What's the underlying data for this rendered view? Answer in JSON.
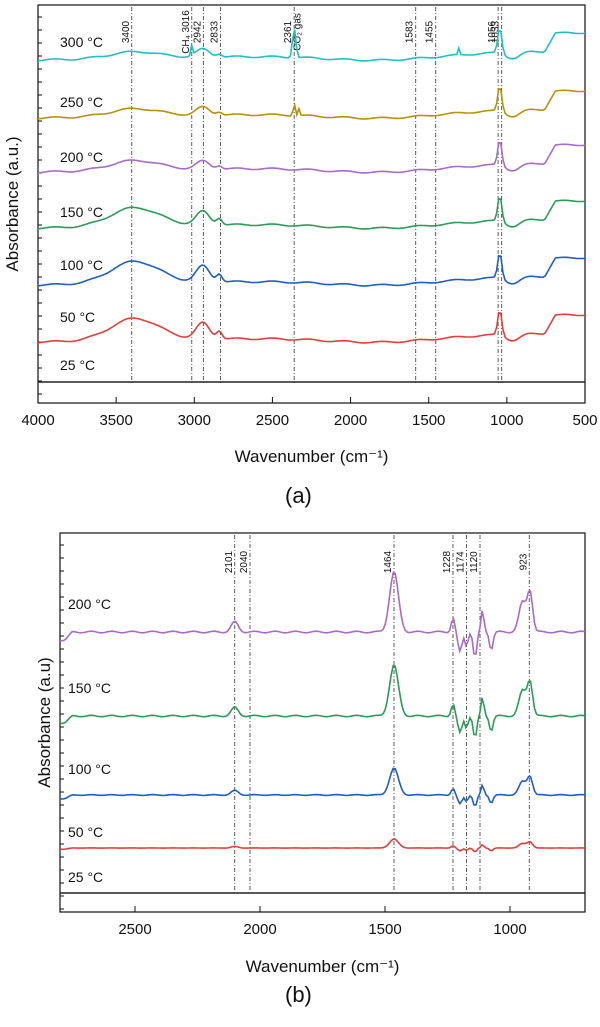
{
  "figure": {
    "panel_labels": [
      "(a)",
      "(b)"
    ]
  },
  "colors": {
    "300 °C": "#22c1c1",
    "250 °C": "#b8900e",
    "200 °C": "#a66cc8",
    "150 °C": "#2e9a5a",
    "100 °C": "#1f5fbf",
    "50 °C": "#e0403c",
    "25 °C": "#222222",
    "marker": "#333333"
  },
  "chart_data": [
    {
      "type": "line",
      "panel": "(a)",
      "xlabel": "Wavenumber (cm⁻¹)",
      "ylabel": "Absorbance (a.u.)",
      "xlim": [
        4000,
        500
      ],
      "x_reversed": true,
      "x_ticks": [
        4000,
        3500,
        3000,
        2500,
        2000,
        1500,
        1000,
        500
      ],
      "series_labels": [
        "300 °C",
        "250 °C",
        "200 °C",
        "150 °C",
        "100 °C",
        "50 °C",
        "25 °C"
      ],
      "reference_lines": [
        3400,
        3016,
        2942,
        2833,
        2361,
        1583,
        1455,
        1056,
        1033
      ],
      "reference_labels": [
        "3400",
        "CH₄ 3016",
        "2942",
        "2833",
        "2361",
        "CO₂ gas",
        "1583",
        "1455",
        "1056",
        "1033"
      ],
      "grid": false,
      "legend": "none (series labelled inline at left)"
    },
    {
      "type": "line",
      "panel": "(b)",
      "xlabel": "Wavenumber (cm⁻¹)",
      "ylabel": "Absorbance (a.u)",
      "xlim": [
        2800,
        700
      ],
      "x_reversed": true,
      "x_ticks": [
        2500,
        2000,
        1500,
        1000
      ],
      "series_labels": [
        "200 °C",
        "150 °C",
        "100 °C",
        "50 °C",
        "25 °C"
      ],
      "reference_lines": [
        2101,
        2040,
        1464,
        1228,
        1174,
        1120,
        923
      ],
      "reference_labels": [
        "2101",
        "2040",
        "1464",
        "1228",
        "1174",
        "1120",
        "923"
      ],
      "grid": false,
      "legend": "none (series labelled inline at left)"
    }
  ]
}
